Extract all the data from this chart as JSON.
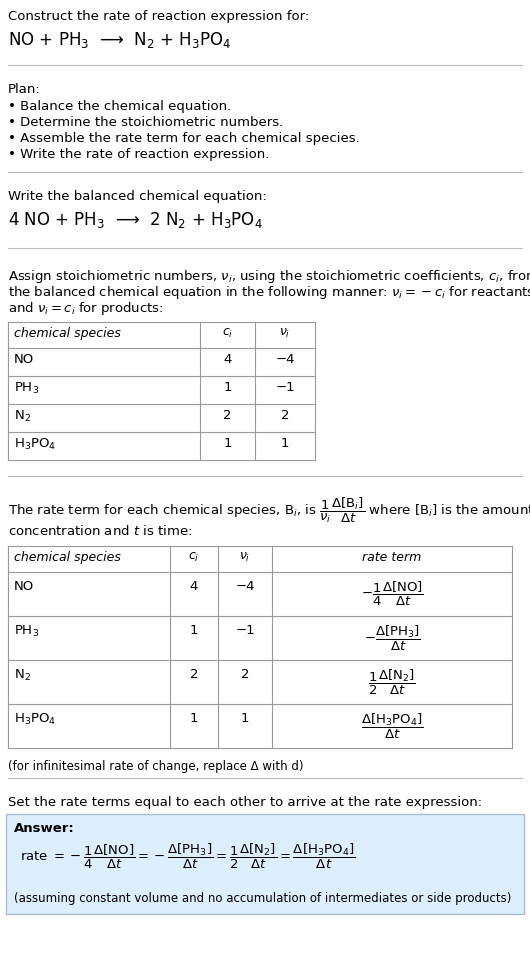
{
  "title_line1": "Construct the rate of reaction expression for:",
  "title_line2": "NO + PH$_3$  ⟶  N$_2$ + H$_3$PO$_4$",
  "plan_header": "Plan:",
  "plan_items": [
    "• Balance the chemical equation.",
    "• Determine the stoichiometric numbers.",
    "• Assemble the rate term for each chemical species.",
    "• Write the rate of reaction expression."
  ],
  "balanced_header": "Write the balanced chemical equation:",
  "balanced_eq": "4 NO + PH$_3$  ⟶  2 N$_2$ + H$_3$PO$_4$",
  "stoich_intro_lines": [
    "Assign stoichiometric numbers, $\\nu_i$, using the stoichiometric coefficients, $c_i$, from",
    "the balanced chemical equation in the following manner: $\\nu_i = -c_i$ for reactants",
    "and $\\nu_i = c_i$ for products:"
  ],
  "table1_headers": [
    "chemical species",
    "$c_i$",
    "$\\nu_i$"
  ],
  "table1_rows": [
    [
      "NO",
      "4",
      "−4"
    ],
    [
      "PH$_3$",
      "1",
      "−1"
    ],
    [
      "N$_2$",
      "2",
      "2"
    ],
    [
      "H$_3$PO$_4$",
      "1",
      "1"
    ]
  ],
  "rate_term_intro_line1": "The rate term for each chemical species, B$_i$, is $\\dfrac{1}{\\nu_i}\\dfrac{\\Delta[\\mathrm{B}_i]}{\\Delta t}$ where [B$_i$] is the amount",
  "rate_term_intro_line2": "concentration and $t$ is time:",
  "table2_headers": [
    "chemical species",
    "$c_i$",
    "$\\nu_i$",
    "rate term"
  ],
  "table2_rows": [
    [
      "NO",
      "4",
      "−4",
      "$-\\dfrac{1}{4}\\dfrac{\\Delta[\\mathrm{NO}]}{\\Delta t}$"
    ],
    [
      "PH$_3$",
      "1",
      "−1",
      "$-\\dfrac{\\Delta[\\mathrm{PH_3}]}{\\Delta t}$"
    ],
    [
      "N$_2$",
      "2",
      "2",
      "$\\dfrac{1}{2}\\dfrac{\\Delta[\\mathrm{N_2}]}{\\Delta t}$"
    ],
    [
      "H$_3$PO$_4$",
      "1",
      "1",
      "$\\dfrac{\\Delta[\\mathrm{H_3PO_4}]}{\\Delta t}$"
    ]
  ],
  "delta_note": "(for infinitesimal rate of change, replace Δ with d)",
  "set_equal_text": "Set the rate terms equal to each other to arrive at the rate expression:",
  "answer_box_color": "#ddeeff",
  "answer_label": "Answer:",
  "answer_eq": "rate $= -\\dfrac{1}{4}\\dfrac{\\Delta[\\mathrm{NO}]}{\\Delta t} = -\\dfrac{\\Delta[\\mathrm{PH_3}]}{\\Delta t} = \\dfrac{1}{2}\\dfrac{\\Delta[\\mathrm{N_2}]}{\\Delta t} = \\dfrac{\\Delta[\\mathrm{H_3PO_4}]}{\\Delta t}$",
  "answer_note": "(assuming constant volume and no accumulation of intermediates or side products)",
  "bg_color": "#ffffff",
  "text_color": "#000000",
  "sep_color": "#bbbbbb",
  "table_border_color": "#999999"
}
